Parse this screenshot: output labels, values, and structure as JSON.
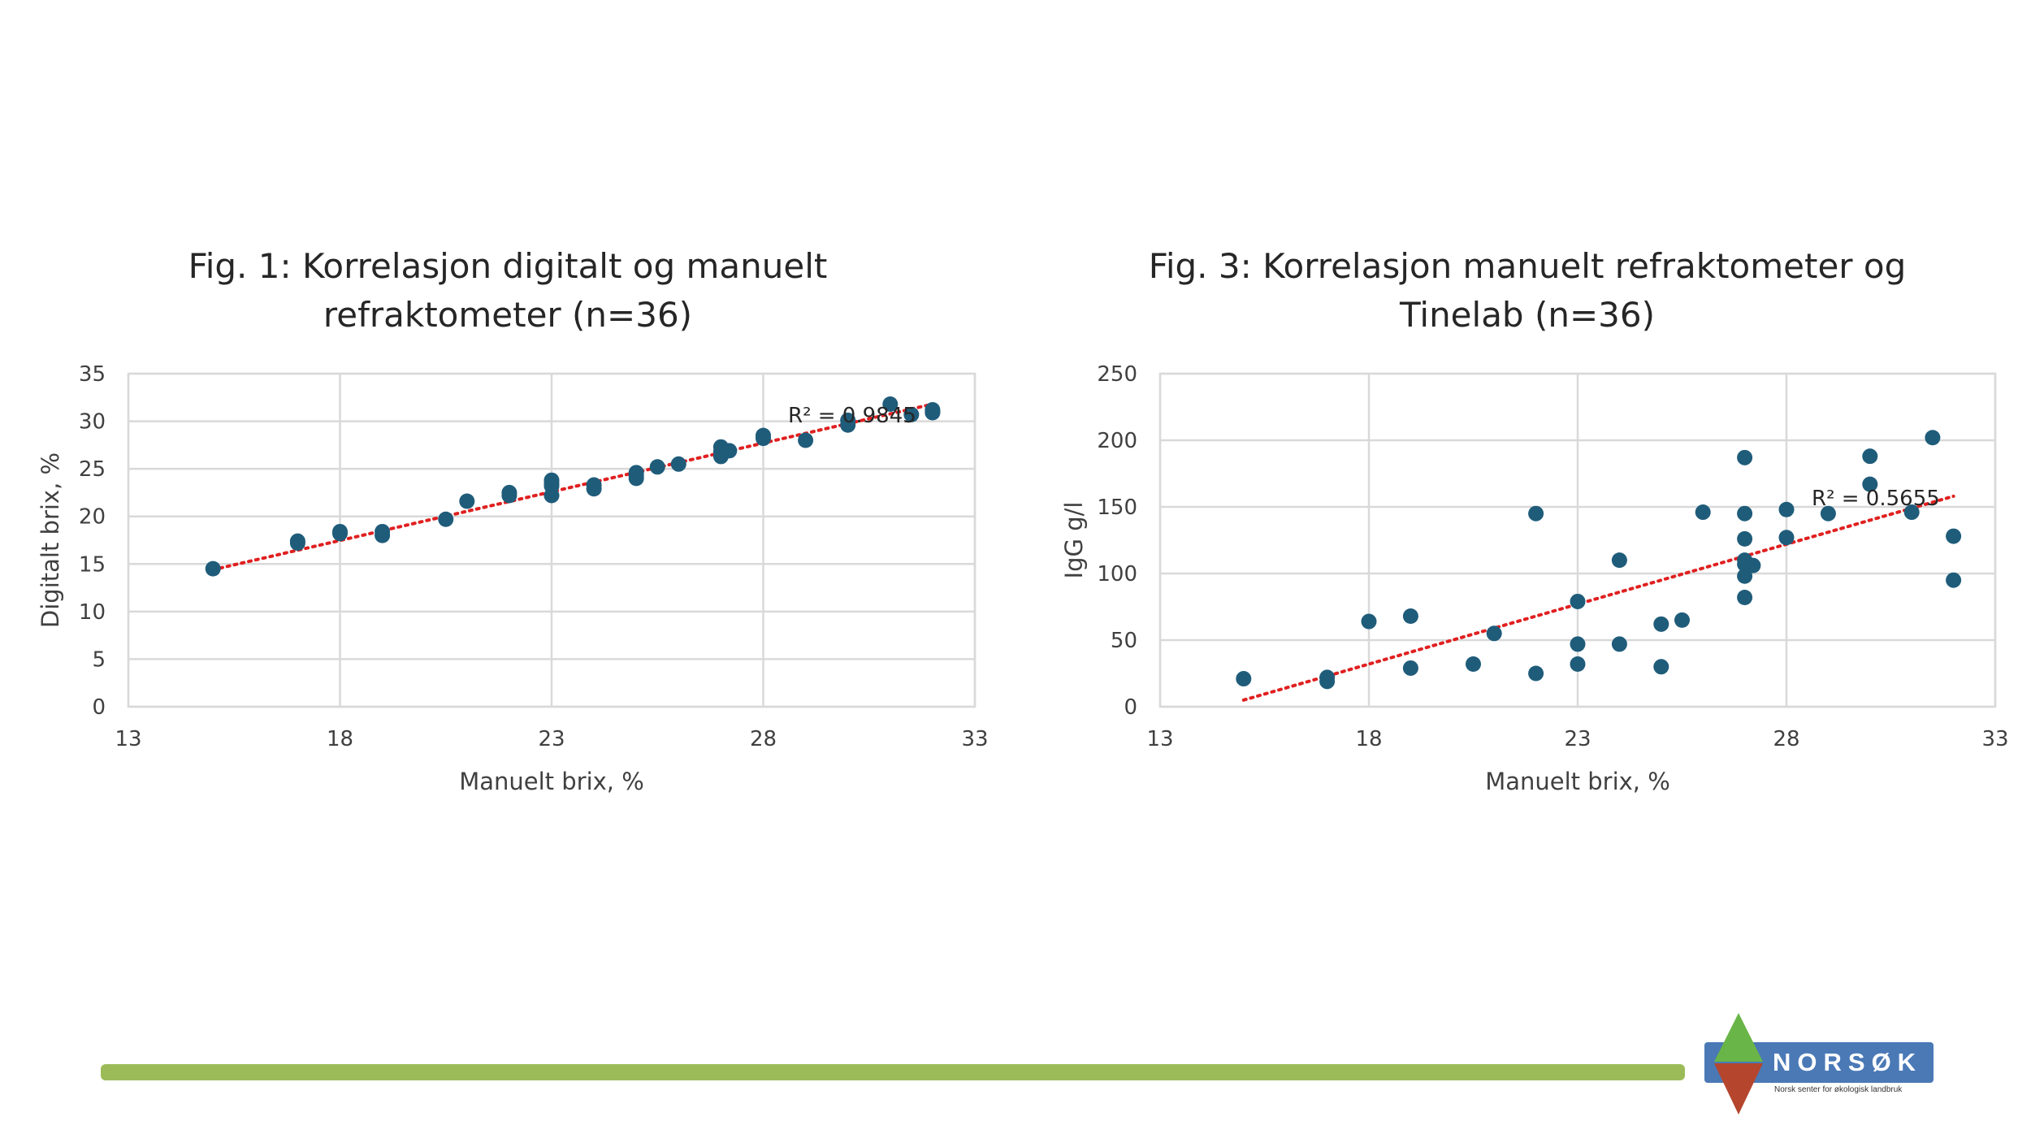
{
  "footer": {
    "logo_name": "NORSØK",
    "logo_tagline": "Norsk senter for økologisk landbruk",
    "bar_color": "#9bbb59",
    "logo_blue": "#4a79b6",
    "logo_green": "#6ab547",
    "logo_red": "#b5462d"
  },
  "chart_data": [
    {
      "type": "scatter",
      "title_lines": [
        "Fig. 1: Korrelasjon digitalt og manuelt",
        "refraktometer (n=36)"
      ],
      "xlabel": "Manuelt brix, %",
      "ylabel": "Digitalt brix, %",
      "xlim": [
        13,
        33
      ],
      "ylim": [
        0,
        35
      ],
      "xticks": [
        13,
        18,
        23,
        28,
        33
      ],
      "yticks": [
        0,
        5,
        10,
        15,
        20,
        25,
        30,
        35
      ],
      "grid": true,
      "point_color": "#1f5c7a",
      "trendline_color": "#e02020",
      "trendline": {
        "x": [
          15,
          32
        ],
        "y": [
          14.4,
          31.8
        ]
      },
      "r2_text": "R² = 0.9845",
      "x": [
        15,
        17,
        17,
        18,
        18,
        19,
        19,
        20.5,
        21,
        22,
        22,
        23,
        23,
        23,
        24,
        24,
        25,
        25,
        25.5,
        26,
        27,
        27,
        27,
        27.2,
        28,
        28,
        29,
        30,
        30,
        31,
        31.5,
        32,
        32,
        32,
        25,
        23
      ],
      "y": [
        14.5,
        17.2,
        17.4,
        18.2,
        18.4,
        18.0,
        18.4,
        19.7,
        21.6,
        22.2,
        22.5,
        22.2,
        23.2,
        23.8,
        22.9,
        23.3,
        24.0,
        24.6,
        25.2,
        25.5,
        26.3,
        26.8,
        27.3,
        26.9,
        28.2,
        28.5,
        28.0,
        29.6,
        30.1,
        31.8,
        30.7,
        30.9,
        31.2,
        31.0,
        24.3,
        23.5
      ]
    },
    {
      "type": "scatter",
      "title_lines": [
        "Fig. 3: Korrelasjon manuelt refraktometer og",
        "Tinelab (n=36)"
      ],
      "xlabel": "Manuelt brix, %",
      "ylabel": "IgG g/l",
      "xlim": [
        13,
        33
      ],
      "ylim": [
        0,
        250
      ],
      "xticks": [
        13,
        18,
        23,
        28,
        33
      ],
      "yticks": [
        0,
        50,
        100,
        150,
        200,
        250
      ],
      "grid": true,
      "point_color": "#1f5c7a",
      "trendline_color": "#e02020",
      "trendline": {
        "x": [
          15,
          32
        ],
        "y": [
          5,
          158
        ]
      },
      "r2_text": "R² = 0.5655",
      "x": [
        15,
        17,
        17,
        18,
        19,
        19,
        20.5,
        21,
        22,
        22,
        23,
        23,
        23,
        24,
        24,
        25,
        25,
        25.5,
        26,
        27,
        27,
        27,
        27,
        27,
        27,
        27.2,
        28,
        28,
        29,
        30,
        30,
        31,
        31.5,
        32,
        32,
        27
      ],
      "y": [
        21,
        22,
        19,
        64,
        68,
        29,
        32,
        55,
        145,
        25,
        79,
        47,
        32,
        110,
        47,
        62,
        30,
        65,
        146,
        187,
        145,
        126,
        107,
        98,
        82,
        106,
        148,
        127,
        145,
        188,
        167,
        146,
        202,
        128,
        95,
        110
      ]
    }
  ]
}
